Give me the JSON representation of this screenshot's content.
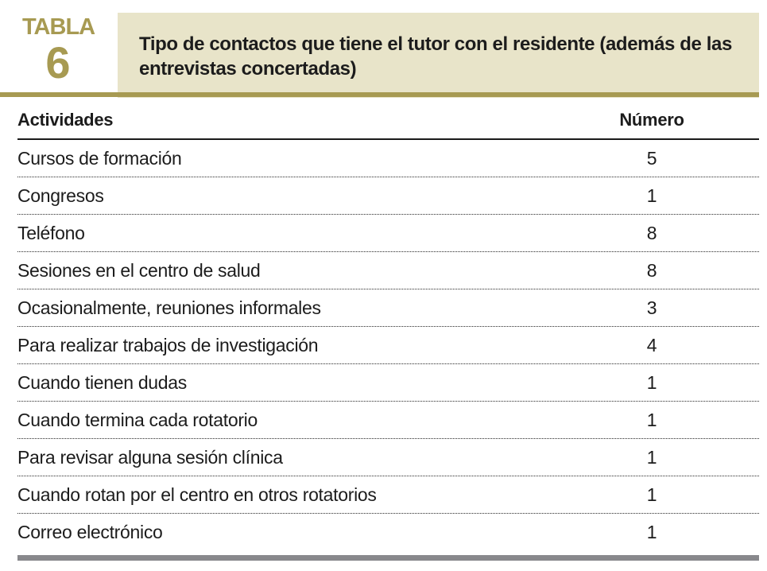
{
  "table": {
    "label": "TABLA",
    "number": "6",
    "title": "Tipo de contactos que tiene el tutor con el residente (además de las entrevistas concertadas)",
    "columns": {
      "activity": "Actividades",
      "number": "Número"
    },
    "rows": [
      {
        "activity": "Cursos de formación",
        "number": "5"
      },
      {
        "activity": "Congresos",
        "number": "1"
      },
      {
        "activity": "Teléfono",
        "number": "8"
      },
      {
        "activity": "Sesiones en el centro de salud",
        "number": "8"
      },
      {
        "activity": "Ocasionalmente, reuniones informales",
        "number": "3"
      },
      {
        "activity": "Para realizar trabajos de investigación",
        "number": "4"
      },
      {
        "activity": "Cuando tienen dudas",
        "number": "1"
      },
      {
        "activity": "Cuando termina cada rotatorio",
        "number": "1"
      },
      {
        "activity": "Para revisar alguna sesión clínica",
        "number": "1"
      },
      {
        "activity": "Cuando rotan por el centro en otros rotatorios",
        "number": "1"
      },
      {
        "activity": "Correo electrónico",
        "number": "1"
      }
    ]
  },
  "colors": {
    "accent_olive": "#a79a52",
    "title_background": "#e8e4c9",
    "text": "#1c1c1c",
    "bottom_bar": "#88888c"
  }
}
